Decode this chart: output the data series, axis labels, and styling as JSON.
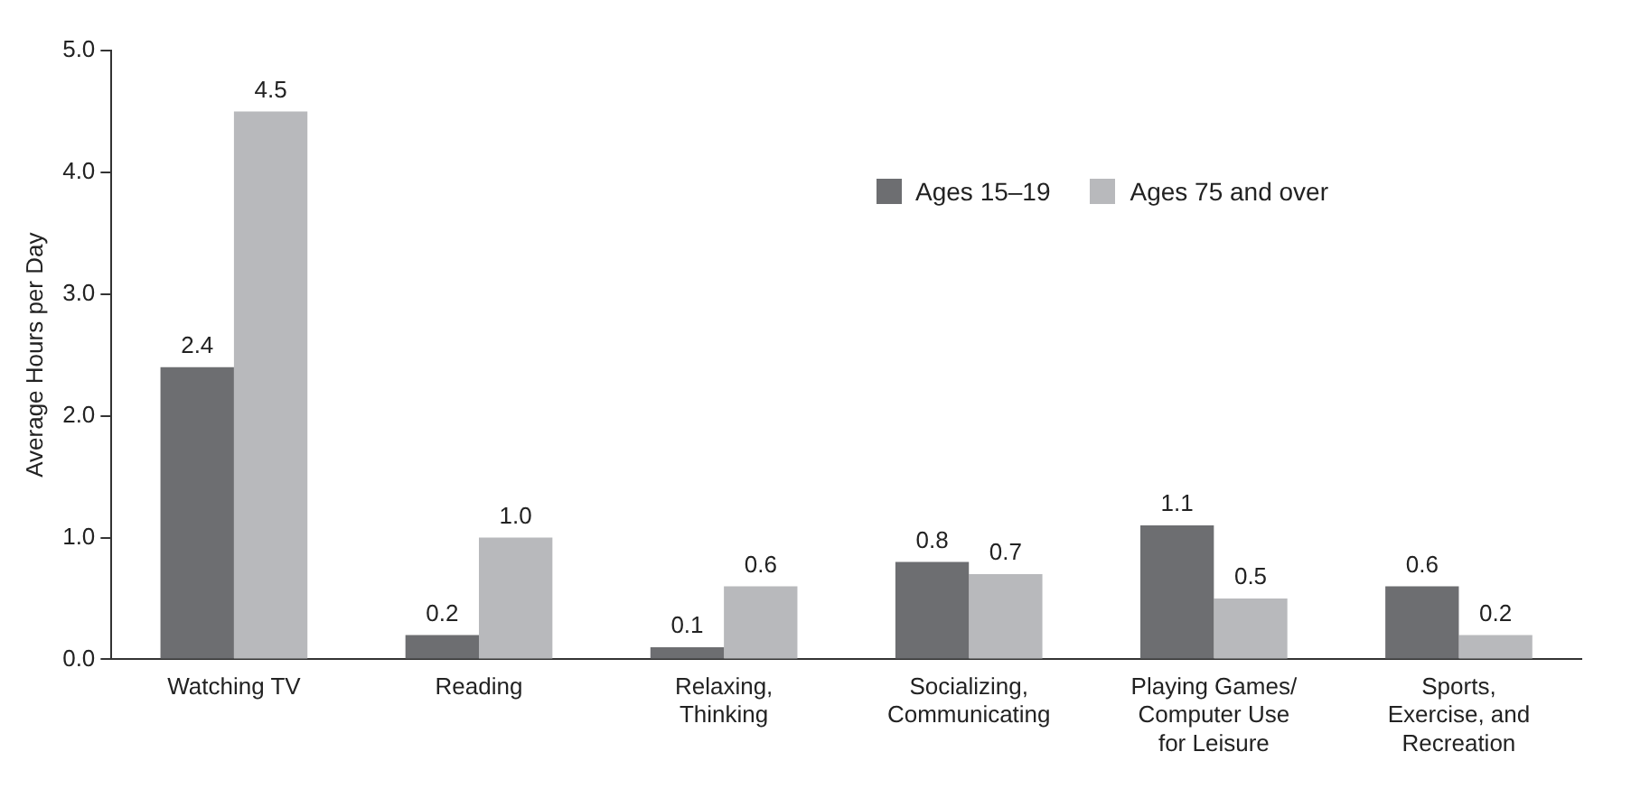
{
  "chart_data": {
    "type": "bar",
    "ylabel": "Average Hours per Day",
    "categories": [
      "Watching TV",
      "Reading",
      "Relaxing,\nThinking",
      "Socializing,\nCommunicating",
      "Playing Games/\nComputer Use\nfor Leisure",
      "Sports,\nExercise, and\nRecreation"
    ],
    "series": [
      {
        "name": "Ages 15–19",
        "color": "#6d6e71",
        "values": [
          2.4,
          0.2,
          0.1,
          0.8,
          1.1,
          0.6
        ],
        "value_labels": [
          "2.4",
          "0.2",
          "0.1",
          "0.8",
          "1.1",
          "0.6"
        ]
      },
      {
        "name": "Ages 75 and over",
        "color": "#b8b9bc",
        "values": [
          4.5,
          1.0,
          0.6,
          0.7,
          0.5,
          0.2
        ],
        "value_labels": [
          "4.5",
          "1.0",
          "0.6",
          "0.7",
          "0.5",
          "0.2"
        ]
      }
    ],
    "ylim": [
      0,
      5
    ],
    "yticks": [
      {
        "value": 0,
        "label": "0.0"
      },
      {
        "value": 1,
        "label": "1.0"
      },
      {
        "value": 2,
        "label": "2.0"
      },
      {
        "value": 3,
        "label": "3.0"
      },
      {
        "value": 4,
        "label": "4.0"
      },
      {
        "value": 5,
        "label": "5.0"
      }
    ],
    "grid": false,
    "legend": "top right"
  }
}
